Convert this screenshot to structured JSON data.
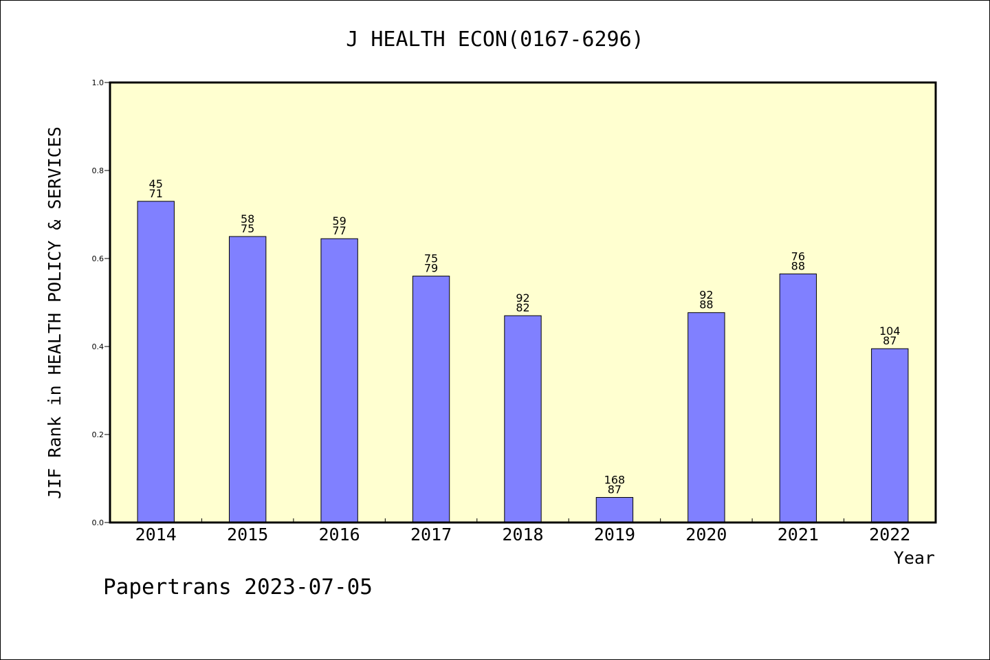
{
  "chart_data": {
    "type": "bar",
    "title": "J HEALTH ECON(0167-6296)",
    "xlabel": "Year",
    "ylabel": "JIF Rank in HEALTH POLICY & SERVICES",
    "ylim": [
      0,
      1.0
    ],
    "yticks": [
      "0.0",
      "0.2",
      "0.4",
      "0.6",
      "0.8",
      "1.0"
    ],
    "categories": [
      "2014",
      "2015",
      "2016",
      "2017",
      "2018",
      "2019",
      "2020",
      "2021",
      "2022"
    ],
    "values": [
      0.73,
      0.65,
      0.645,
      0.56,
      0.47,
      0.057,
      0.477,
      0.565,
      0.395
    ],
    "labels_top": [
      "45",
      "58",
      "59",
      "75",
      "92",
      "168",
      "92",
      "76",
      "104"
    ],
    "labels_bottom": [
      "71",
      "75",
      "77",
      "79",
      "82",
      "87",
      "88",
      "88",
      "87"
    ],
    "grid": false,
    "colors": {
      "bar": "#8080ff",
      "plot_bg": "#ffffd0"
    }
  },
  "footer": "Papertrans 2023-07-05"
}
